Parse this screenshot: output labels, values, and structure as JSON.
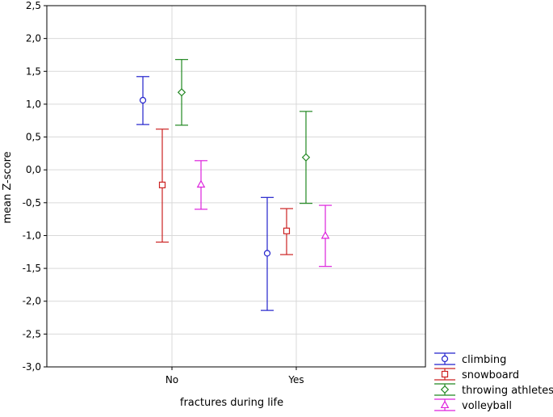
{
  "chart_data": {
    "type": "scatter",
    "subtype": "error-bar",
    "xlabel": "fractures during life",
    "ylabel": "mean Z-score",
    "categories": [
      "No",
      "Yes"
    ],
    "ylim": [
      -3.0,
      2.5
    ],
    "yticks": [
      -3.0,
      -2.5,
      -2.0,
      -1.5,
      -1.0,
      -0.5,
      0.0,
      0.5,
      1.0,
      1.5,
      2.0,
      2.5
    ],
    "ytick_labels": [
      "-3,0",
      "-2,5",
      "-2,0",
      "-1,5",
      "-1,0",
      "-0,5",
      "0,0",
      "0,5",
      "1,0",
      "1,5",
      "2,0",
      "2,5"
    ],
    "grid": true,
    "legend_position": "bottom-right, outside plot",
    "series": [
      {
        "name": "climbing",
        "color": "#2222cc",
        "marker": "circle",
        "mean": [
          1.06,
          -1.27
        ],
        "lower": [
          0.69,
          -2.14
        ],
        "upper": [
          1.42,
          -0.42
        ]
      },
      {
        "name": "snowboard",
        "color": "#cc2222",
        "marker": "square",
        "mean": [
          -0.23,
          -0.93
        ],
        "lower": [
          -1.1,
          -1.29
        ],
        "upper": [
          0.62,
          -0.59
        ]
      },
      {
        "name": "throwing athletes",
        "color": "#228822",
        "marker": "diamond",
        "mean": [
          1.18,
          0.19
        ],
        "lower": [
          0.68,
          -0.51
        ],
        "upper": [
          1.68,
          0.89
        ]
      },
      {
        "name": "volleyball",
        "color": "#dd22dd",
        "marker": "triangle",
        "mean": [
          -0.22,
          -1.0
        ],
        "lower": [
          -0.6,
          -1.47
        ],
        "upper": [
          0.14,
          -0.54
        ]
      }
    ]
  }
}
